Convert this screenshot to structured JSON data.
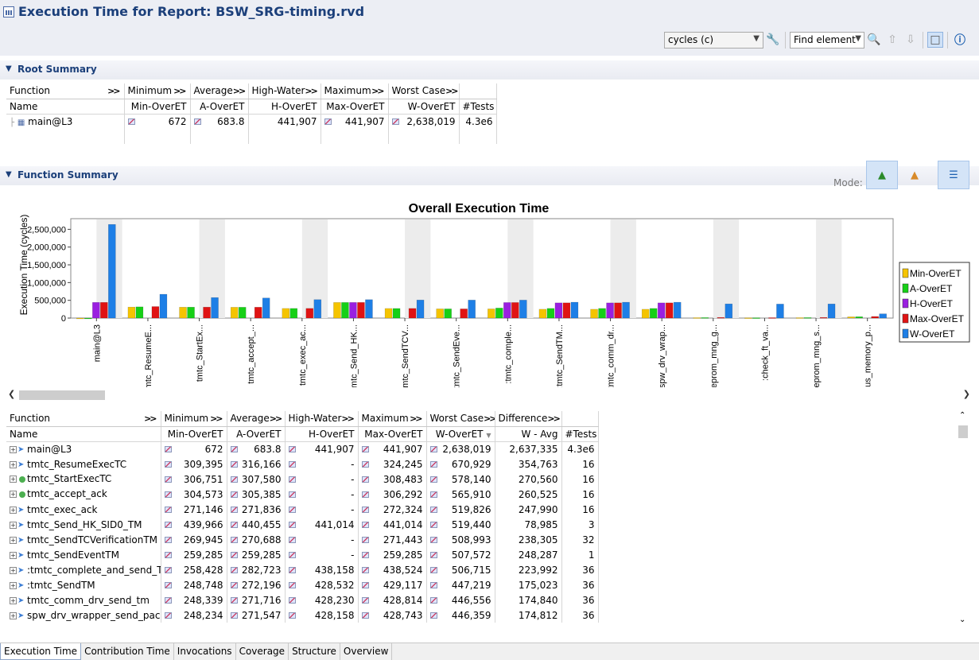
{
  "header": {
    "title": "Execution Time for Report: BSW_SRG-timing.rvd",
    "unit_select": "cycles (c)",
    "find_select": "Find element"
  },
  "root_summary": {
    "label": "Root Summary",
    "group_headers": [
      "Function",
      "Minimum",
      "Average",
      "High-Water",
      "Maximum",
      "Worst Case"
    ],
    "columns": [
      "Name",
      "Min-OverET",
      "A-OverET",
      "H-OverET",
      "Max-OverET",
      "W-OverET",
      "#Tests"
    ],
    "row": {
      "name": "main@L3",
      "min": "672",
      "avg": "683.8",
      "high": "441,907",
      "max": "441,907",
      "worst": "2,638,019",
      "tests": "4.3e6"
    }
  },
  "function_summary": {
    "label": "Function Summary",
    "mode_label": "Mode:",
    "group_headers": [
      "Function",
      "Minimum",
      "Average",
      "High-Water",
      "Maximum",
      "Worst Case",
      "Difference"
    ],
    "columns": [
      "Name",
      "Min-OverET",
      "A-OverET",
      "H-OverET",
      "Max-OverET",
      "W-OverET",
      "W - Avg",
      "#Tests"
    ],
    "rows": [
      {
        "icon": "arrow-icon",
        "name": "main@L3",
        "min": "672",
        "avg": "683.8",
        "high": "441,907",
        "max": "441,907",
        "worst": "2,638,019",
        "diff": "2,637,335",
        "tests": "4.3e6"
      },
      {
        "icon": "arrow-icon",
        "name": "tmtc_ResumeExecTC",
        "min": "309,395",
        "avg": "316,166",
        "high": "-",
        "max": "324,245",
        "worst": "670,929",
        "diff": "354,763",
        "tests": "16"
      },
      {
        "icon": "dot-icon",
        "name": "tmtc_StartExecTC",
        "min": "306,751",
        "avg": "307,580",
        "high": "-",
        "max": "308,483",
        "worst": "578,140",
        "diff": "270,560",
        "tests": "16"
      },
      {
        "icon": "dot-icon",
        "name": "tmtc_accept_ack",
        "min": "304,573",
        "avg": "305,385",
        "high": "-",
        "max": "306,292",
        "worst": "565,910",
        "diff": "260,525",
        "tests": "16"
      },
      {
        "icon": "arrow-icon",
        "name": "tmtc_exec_ack",
        "min": "271,146",
        "avg": "271,836",
        "high": "-",
        "max": "272,324",
        "worst": "519,826",
        "diff": "247,990",
        "tests": "16"
      },
      {
        "icon": "arrow-icon",
        "name": "tmtc_Send_HK_SID0_TM",
        "min": "439,966",
        "avg": "440,455",
        "high": "441,014",
        "max": "441,014",
        "worst": "519,440",
        "diff": "78,985",
        "tests": "3"
      },
      {
        "icon": "arrow-icon",
        "name": "tmtc_SendTCVerificationTM",
        "min": "269,945",
        "avg": "270,688",
        "high": "-",
        "max": "271,443",
        "worst": "508,993",
        "diff": "238,305",
        "tests": "32"
      },
      {
        "icon": "arrow-icon",
        "name": "tmtc_SendEventTM",
        "min": "259,285",
        "avg": "259,285",
        "high": "-",
        "max": "259,285",
        "worst": "507,572",
        "diff": "248,287",
        "tests": "1"
      },
      {
        "icon": "arrow-icon",
        "name": ":tmtc_complete_and_send_TM",
        "min": "258,428",
        "avg": "282,723",
        "high": "438,158",
        "max": "438,524",
        "worst": "506,715",
        "diff": "223,992",
        "tests": "36"
      },
      {
        "icon": "arrow-icon",
        "name": ":tmtc_SendTM",
        "min": "248,748",
        "avg": "272,196",
        "high": "428,532",
        "max": "429,117",
        "worst": "447,219",
        "diff": "175,023",
        "tests": "36"
      },
      {
        "icon": "arrow-icon",
        "name": "tmtc_comm_drv_send_tm",
        "min": "248,339",
        "avg": "271,716",
        "high": "428,230",
        "max": "428,814",
        "worst": "446,556",
        "diff": "174,840",
        "tests": "36"
      },
      {
        "icon": "arrow-icon",
        "name": "spw_drv_wrapper_send_packet",
        "min": "248,234",
        "avg": "271,547",
        "high": "428,158",
        "max": "428,743",
        "worst": "446,359",
        "diff": "174,812",
        "tests": "36"
      }
    ]
  },
  "bottom_tabs": [
    "Execution Time",
    "Contribution Time",
    "Invocations",
    "Coverage",
    "Structure",
    "Overview"
  ],
  "chart_data": {
    "type": "bar",
    "title": "Overall Execution Time",
    "ylabel": "Execution Time (cycles)",
    "xlabel": "",
    "ylim": [
      0,
      2800000
    ],
    "yticks": [
      0,
      500000,
      1000000,
      1500000,
      2000000,
      2500000
    ],
    "ytick_labels": [
      "0",
      "500,000",
      "1,000,000",
      "1,500,000",
      "2,000,000",
      "2,500,000"
    ],
    "legend_position": "right",
    "categories": [
      "main@L3",
      "tmtc_ResumeE...",
      "tmtc_StartEx...",
      "tmtc_accept_...",
      "tmtc_exec_ac...",
      "tmtc_Send_HK...",
      "tmtc_SendTCV...",
      "tmtc_SendEve...",
      ":tmtc_comple...",
      ":tmtc_SendTM...",
      "tmtc_comm_dr...",
      "spw_drv_wrap...",
      "eeprom_mng_g...",
      ":check_ft_va...",
      "eeprom_mng_s...",
      "pus_memory_p..."
    ],
    "series": [
      {
        "name": "Min-OverET",
        "color": "#f5c400",
        "values": [
          672,
          309395,
          306751,
          304573,
          271146,
          439966,
          269945,
          259285,
          258428,
          248748,
          248339,
          248234,
          12000,
          8000,
          12000,
          35000
        ]
      },
      {
        "name": "A-OverET",
        "color": "#16d016",
        "values": [
          684,
          316166,
          307580,
          305385,
          271836,
          440455,
          270688,
          259285,
          282723,
          272196,
          271716,
          271547,
          14000,
          9000,
          14000,
          38000
        ]
      },
      {
        "name": "H-OverET",
        "color": "#9a1fe0",
        "values": [
          441907,
          0,
          0,
          0,
          0,
          441014,
          0,
          0,
          438158,
          428532,
          428230,
          428158,
          0,
          0,
          0,
          0
        ]
      },
      {
        "name": "Max-OverET",
        "color": "#e01313",
        "values": [
          441907,
          324245,
          308483,
          306292,
          272324,
          441014,
          271443,
          259285,
          438524,
          429117,
          428814,
          428743,
          18000,
          12000,
          18000,
          45000
        ]
      },
      {
        "name": "W-OverET",
        "color": "#1e7fe6",
        "values": [
          2638019,
          670929,
          578140,
          565910,
          519826,
          519440,
          508993,
          507572,
          506715,
          447219,
          446556,
          446359,
          400000,
          395000,
          398000,
          120000
        ]
      }
    ]
  }
}
